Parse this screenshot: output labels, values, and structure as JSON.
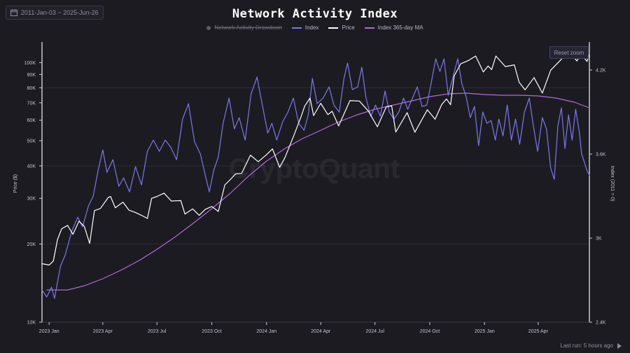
{
  "header": {
    "date_range": "2011-Jan-03 ~ 2025-Jun-26",
    "reset_zoom": "Reset zoom",
    "last_run": "Last run: 5 hours ago",
    "watermark": "CryptoQuant"
  },
  "colors": {
    "background": "#1c1b22",
    "index": "#7b78e8",
    "price": "#ffffff",
    "ma": "#b06ad6",
    "drawdown": "#5c5b66"
  },
  "chart_data": {
    "type": "line",
    "title": "Network Activity Index",
    "legend": [
      "Network Activity Drawdown",
      "Index",
      "Price",
      "Index 365-day MA"
    ],
    "legend_disabled": [
      "Network Activity Drawdown"
    ],
    "x_ticks": [
      "2023 Jan",
      "2023 Apr",
      "2023 Jul",
      "2023 Oct",
      "2024 Jan",
      "2024 Apr",
      "2024 Jul",
      "2024 Oct",
      "2025 Jan",
      "2025 Apr"
    ],
    "x_range": [
      "2022-12-20",
      "2025-06-26"
    ],
    "y_left": {
      "label": "Price ($)",
      "scale": "log",
      "range": [
        10000,
        120000
      ],
      "ticks": [
        10000,
        20000,
        30000,
        40000,
        50000,
        60000,
        70000,
        80000,
        90000,
        100000
      ],
      "tick_labels": [
        "10K",
        "20K",
        "30K",
        "40K",
        "50K",
        "60K",
        "70K",
        "80K",
        "90K",
        "100K"
      ]
    },
    "y_right": {
      "label": "Index (2011 = 0)",
      "scale": "linear",
      "range": [
        2400,
        4400
      ],
      "ticks": [
        2400,
        3000,
        3600,
        4200
      ],
      "tick_labels": [
        "2.4K",
        "3K",
        "3.6K",
        "4.2K"
      ]
    },
    "grid": true,
    "series": [
      {
        "name": "Price",
        "axis": "left",
        "points": [
          [
            "2022-12-20",
            16800
          ],
          [
            "2023-01-01",
            16600
          ],
          [
            "2023-01-08",
            17200
          ],
          [
            "2023-01-15",
            20800
          ],
          [
            "2023-01-22",
            22900
          ],
          [
            "2023-02-01",
            23600
          ],
          [
            "2023-02-10",
            21800
          ],
          [
            "2023-02-20",
            24500
          ],
          [
            "2023-03-01",
            23400
          ],
          [
            "2023-03-10",
            20100
          ],
          [
            "2023-03-18",
            26900
          ],
          [
            "2023-03-28",
            27400
          ],
          [
            "2023-04-10",
            30200
          ],
          [
            "2023-04-14",
            30500
          ],
          [
            "2023-04-22",
            27600
          ],
          [
            "2023-05-05",
            29000
          ],
          [
            "2023-05-15",
            27000
          ],
          [
            "2023-05-25",
            26500
          ],
          [
            "2023-06-05",
            25800
          ],
          [
            "2023-06-15",
            25100
          ],
          [
            "2023-06-22",
            30000
          ],
          [
            "2023-07-01",
            30500
          ],
          [
            "2023-07-13",
            31400
          ],
          [
            "2023-07-25",
            29300
          ],
          [
            "2023-08-10",
            29400
          ],
          [
            "2023-08-17",
            26100
          ],
          [
            "2023-08-30",
            27300
          ],
          [
            "2023-09-10",
            25800
          ],
          [
            "2023-09-20",
            27200
          ],
          [
            "2023-10-01",
            27900
          ],
          [
            "2023-10-12",
            26700
          ],
          [
            "2023-10-23",
            33800
          ],
          [
            "2023-11-01",
            35400
          ],
          [
            "2023-11-10",
            37300
          ],
          [
            "2023-11-20",
            37400
          ],
          [
            "2023-12-05",
            44000
          ],
          [
            "2023-12-18",
            41500
          ],
          [
            "2024-01-01",
            44200
          ],
          [
            "2024-01-11",
            46500
          ],
          [
            "2024-01-23",
            39500
          ],
          [
            "2024-02-01",
            43100
          ],
          [
            "2024-02-15",
            51800
          ],
          [
            "2024-02-28",
            62000
          ],
          [
            "2024-03-05",
            68000
          ],
          [
            "2024-03-14",
            73000
          ],
          [
            "2024-03-20",
            62500
          ],
          [
            "2024-04-01",
            69700
          ],
          [
            "2024-04-13",
            63000
          ],
          [
            "2024-04-20",
            64900
          ],
          [
            "2024-05-01",
            57000
          ],
          [
            "2024-05-20",
            71400
          ],
          [
            "2024-06-05",
            71100
          ],
          [
            "2024-06-20",
            65000
          ],
          [
            "2024-07-05",
            56600
          ],
          [
            "2024-07-20",
            67500
          ],
          [
            "2024-07-29",
            68200
          ],
          [
            "2024-08-05",
            54000
          ],
          [
            "2024-08-24",
            64100
          ],
          [
            "2024-09-06",
            53900
          ],
          [
            "2024-09-27",
            65800
          ],
          [
            "2024-10-10",
            60500
          ],
          [
            "2024-10-21",
            68900
          ],
          [
            "2024-10-29",
            72400
          ],
          [
            "2024-11-05",
            68800
          ],
          [
            "2024-11-11",
            88800
          ],
          [
            "2024-11-22",
            98900
          ],
          [
            "2024-12-05",
            101900
          ],
          [
            "2024-12-17",
            106000
          ],
          [
            "2024-12-30",
            92000
          ],
          [
            "2025-01-07",
            97000
          ],
          [
            "2025-01-13",
            94000
          ],
          [
            "2025-01-20",
            106000
          ],
          [
            "2025-02-05",
            96500
          ],
          [
            "2025-02-20",
            98000
          ],
          [
            "2025-02-28",
            84000
          ],
          [
            "2025-03-10",
            78500
          ],
          [
            "2025-03-25",
            87500
          ],
          [
            "2025-04-08",
            76300
          ],
          [
            "2025-04-22",
            93500
          ],
          [
            "2025-05-10",
            103000
          ],
          [
            "2025-05-22",
            111000
          ],
          [
            "2025-06-05",
            101500
          ],
          [
            "2025-06-12",
            107800
          ],
          [
            "2025-06-22",
            101000
          ],
          [
            "2025-06-26",
            107300
          ]
        ]
      },
      {
        "name": "Index",
        "axis": "right",
        "points": [
          [
            "2022-12-20",
            2630
          ],
          [
            "2022-12-28",
            2580
          ],
          [
            "2023-01-05",
            2650
          ],
          [
            "2023-01-10",
            2570
          ],
          [
            "2023-01-20",
            2800
          ],
          [
            "2023-01-28",
            2880
          ],
          [
            "2023-02-08",
            3050
          ],
          [
            "2023-02-18",
            3150
          ],
          [
            "2023-02-26",
            3080
          ],
          [
            "2023-03-08",
            3230
          ],
          [
            "2023-03-16",
            3300
          ],
          [
            "2023-03-24",
            3480
          ],
          [
            "2023-04-01",
            3630
          ],
          [
            "2023-04-08",
            3470
          ],
          [
            "2023-04-18",
            3560
          ],
          [
            "2023-04-28",
            3370
          ],
          [
            "2023-05-06",
            3430
          ],
          [
            "2023-05-16",
            3330
          ],
          [
            "2023-05-26",
            3510
          ],
          [
            "2023-06-05",
            3380
          ],
          [
            "2023-06-15",
            3620
          ],
          [
            "2023-06-25",
            3700
          ],
          [
            "2023-07-05",
            3620
          ],
          [
            "2023-07-15",
            3700
          ],
          [
            "2023-07-24",
            3650
          ],
          [
            "2023-08-03",
            3560
          ],
          [
            "2023-08-13",
            3850
          ],
          [
            "2023-08-23",
            3960
          ],
          [
            "2023-09-02",
            3690
          ],
          [
            "2023-09-12",
            3600
          ],
          [
            "2023-09-20",
            3450
          ],
          [
            "2023-09-27",
            3330
          ],
          [
            "2023-10-04",
            3480
          ],
          [
            "2023-10-12",
            3580
          ],
          [
            "2023-10-20",
            3820
          ],
          [
            "2023-10-30",
            4000
          ],
          [
            "2023-11-08",
            3780
          ],
          [
            "2023-11-16",
            3860
          ],
          [
            "2023-11-26",
            3700
          ],
          [
            "2023-12-06",
            4030
          ],
          [
            "2023-12-16",
            4150
          ],
          [
            "2023-12-24",
            3970
          ],
          [
            "2024-01-03",
            3750
          ],
          [
            "2024-01-10",
            3820
          ],
          [
            "2024-01-18",
            3700
          ],
          [
            "2024-01-28",
            3830
          ],
          [
            "2024-02-06",
            3900
          ],
          [
            "2024-02-15",
            4000
          ],
          [
            "2024-02-24",
            3820
          ],
          [
            "2024-03-04",
            3770
          ],
          [
            "2024-03-11",
            3880
          ],
          [
            "2024-03-18",
            4140
          ],
          [
            "2024-03-26",
            3960
          ],
          [
            "2024-04-05",
            4000
          ],
          [
            "2024-04-15",
            4080
          ],
          [
            "2024-04-23",
            3950
          ],
          [
            "2024-05-02",
            3900
          ],
          [
            "2024-05-10",
            4140
          ],
          [
            "2024-05-16",
            4250
          ],
          [
            "2024-05-24",
            4060
          ],
          [
            "2024-06-02",
            4080
          ],
          [
            "2024-06-09",
            4220
          ],
          [
            "2024-06-16",
            4000
          ],
          [
            "2024-06-24",
            3870
          ],
          [
            "2024-07-02",
            3950
          ],
          [
            "2024-07-10",
            3870
          ],
          [
            "2024-07-18",
            4050
          ],
          [
            "2024-07-25",
            3900
          ],
          [
            "2024-08-02",
            3850
          ],
          [
            "2024-08-10",
            3900
          ],
          [
            "2024-08-18",
            4000
          ],
          [
            "2024-08-25",
            3920
          ],
          [
            "2024-09-02",
            4000
          ],
          [
            "2024-09-10",
            4080
          ],
          [
            "2024-09-18",
            3940
          ],
          [
            "2024-09-26",
            3950
          ],
          [
            "2024-10-03",
            4100
          ],
          [
            "2024-10-11",
            4280
          ],
          [
            "2024-10-18",
            4190
          ],
          [
            "2024-10-25",
            4280
          ],
          [
            "2024-11-01",
            4020
          ],
          [
            "2024-11-09",
            4150
          ],
          [
            "2024-11-17",
            4280
          ],
          [
            "2024-11-24",
            4100
          ],
          [
            "2024-12-01",
            4010
          ],
          [
            "2024-12-08",
            3860
          ],
          [
            "2024-12-15",
            3940
          ],
          [
            "2024-12-22",
            3660
          ],
          [
            "2024-12-29",
            3900
          ],
          [
            "2025-01-05",
            3820
          ],
          [
            "2025-01-12",
            3840
          ],
          [
            "2025-01-19",
            3700
          ],
          [
            "2025-01-25",
            3850
          ],
          [
            "2025-02-01",
            3730
          ],
          [
            "2025-02-08",
            3950
          ],
          [
            "2025-02-15",
            3700
          ],
          [
            "2025-02-22",
            3850
          ],
          [
            "2025-03-01",
            3670
          ],
          [
            "2025-03-09",
            3900
          ],
          [
            "2025-03-17",
            4000
          ],
          [
            "2025-03-24",
            3800
          ],
          [
            "2025-03-31",
            3620
          ],
          [
            "2025-04-08",
            3860
          ],
          [
            "2025-04-15",
            3780
          ],
          [
            "2025-04-22",
            3500
          ],
          [
            "2025-04-28",
            3420
          ],
          [
            "2025-05-04",
            3800
          ],
          [
            "2025-05-10",
            3930
          ],
          [
            "2025-05-16",
            3640
          ],
          [
            "2025-05-22",
            3880
          ],
          [
            "2025-05-28",
            3700
          ],
          [
            "2025-06-03",
            3920
          ],
          [
            "2025-06-09",
            3760
          ],
          [
            "2025-06-13",
            3600
          ],
          [
            "2025-06-17",
            3550
          ],
          [
            "2025-06-22",
            3480
          ],
          [
            "2025-06-26",
            3450
          ]
        ]
      },
      {
        "name": "Index 365-day MA",
        "axis": "right",
        "points": [
          [
            "2022-12-28",
            2630
          ],
          [
            "2023-02-01",
            2630
          ],
          [
            "2023-03-01",
            2660
          ],
          [
            "2023-04-01",
            2710
          ],
          [
            "2023-05-01",
            2770
          ],
          [
            "2023-06-01",
            2840
          ],
          [
            "2023-07-01",
            2920
          ],
          [
            "2023-08-01",
            3010
          ],
          [
            "2023-09-01",
            3110
          ],
          [
            "2023-10-01",
            3210
          ],
          [
            "2023-11-01",
            3320
          ],
          [
            "2023-12-01",
            3440
          ],
          [
            "2024-01-01",
            3550
          ],
          [
            "2024-02-01",
            3640
          ],
          [
            "2024-03-01",
            3710
          ],
          [
            "2024-04-01",
            3770
          ],
          [
            "2024-05-01",
            3830
          ],
          [
            "2024-06-01",
            3880
          ],
          [
            "2024-07-01",
            3920
          ],
          [
            "2024-08-01",
            3950
          ],
          [
            "2024-09-01",
            3980
          ],
          [
            "2024-10-01",
            4010
          ],
          [
            "2024-11-01",
            4030
          ],
          [
            "2024-12-01",
            4035
          ],
          [
            "2025-01-01",
            4025
          ],
          [
            "2025-02-01",
            4020
          ],
          [
            "2025-03-01",
            4020
          ],
          [
            "2025-04-01",
            4015
          ],
          [
            "2025-05-01",
            4000
          ],
          [
            "2025-06-01",
            3970
          ],
          [
            "2025-06-26",
            3930
          ]
        ]
      }
    ]
  }
}
